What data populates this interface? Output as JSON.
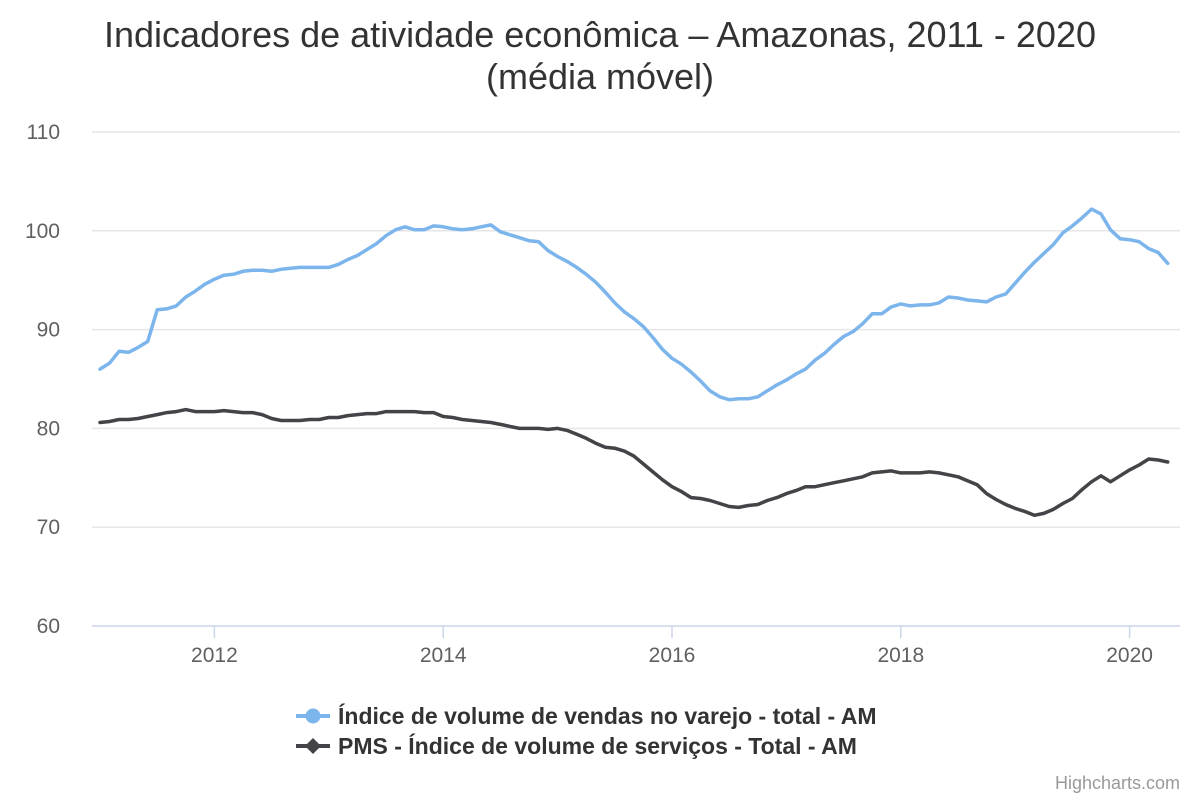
{
  "chart_data": {
    "type": "line",
    "title": "Indicadores de atividade econômica – Amazonas, 2011 - 2020",
    "subtitle": "(média móvel)",
    "xlabel": "",
    "ylabel": "",
    "ylim": [
      60,
      110
    ],
    "yticks": [
      "60",
      "70",
      "80",
      "90",
      "100",
      "110"
    ],
    "xticks": [
      "2012",
      "2014",
      "2016",
      "2018",
      "2020"
    ],
    "grid": true,
    "legend_position": "bottom",
    "x_start": "2011-01",
    "x_step": "1 month",
    "series": [
      {
        "name": "Índice de volume de vendas no varejo - total - AM",
        "color": "#7cb5ec",
        "marker": "circle",
        "values": [
          86.0,
          86.6,
          87.8,
          87.7,
          88.2,
          88.8,
          92.0,
          92.1,
          92.4,
          93.3,
          93.9,
          94.6,
          95.1,
          95.5,
          95.6,
          95.9,
          96.0,
          96.0,
          95.9,
          96.1,
          96.2,
          96.3,
          96.3,
          96.3,
          96.3,
          96.6,
          97.1,
          97.5,
          98.1,
          98.7,
          99.5,
          100.1,
          100.4,
          100.1,
          100.1,
          100.5,
          100.4,
          100.2,
          100.1,
          100.2,
          100.4,
          100.6,
          99.9,
          99.6,
          99.3,
          99.0,
          98.9,
          98.0,
          97.4,
          96.9,
          96.3,
          95.6,
          94.8,
          93.8,
          92.7,
          91.8,
          91.1,
          90.3,
          89.2,
          88.0,
          87.1,
          86.5,
          85.7,
          84.8,
          83.8,
          83.2,
          82.9,
          83.0,
          83.0,
          83.2,
          83.8,
          84.4,
          84.9,
          85.5,
          86.0,
          86.9,
          87.6,
          88.5,
          89.3,
          89.8,
          90.6,
          91.6,
          91.6,
          92.3,
          92.6,
          92.4,
          92.5,
          92.5,
          92.7,
          93.3,
          93.2,
          93.0,
          92.9,
          92.8,
          93.3,
          93.6,
          94.7,
          95.8,
          96.8,
          97.7,
          98.6,
          99.8,
          100.5,
          101.3,
          102.2,
          101.7,
          100.1,
          99.2,
          99.1,
          98.9,
          98.2,
          97.8,
          96.7
        ]
      },
      {
        "name": "PMS - Índice de volume de serviços - Total - AM",
        "color": "#434348",
        "marker": "diamond",
        "values": [
          80.6,
          80.7,
          80.9,
          80.9,
          81.0,
          81.2,
          81.4,
          81.6,
          81.7,
          81.9,
          81.7,
          81.7,
          81.7,
          81.8,
          81.7,
          81.6,
          81.6,
          81.4,
          81.0,
          80.8,
          80.8,
          80.8,
          80.9,
          80.9,
          81.1,
          81.1,
          81.3,
          81.4,
          81.5,
          81.5,
          81.7,
          81.7,
          81.7,
          81.7,
          81.6,
          81.6,
          81.2,
          81.1,
          80.9,
          80.8,
          80.7,
          80.6,
          80.4,
          80.2,
          80.0,
          80.0,
          80.0,
          79.9,
          80.0,
          79.8,
          79.4,
          79.0,
          78.5,
          78.1,
          78.0,
          77.7,
          77.2,
          76.4,
          75.6,
          74.8,
          74.1,
          73.6,
          73.0,
          72.9,
          72.7,
          72.4,
          72.1,
          72.0,
          72.2,
          72.3,
          72.7,
          73.0,
          73.4,
          73.7,
          74.1,
          74.1,
          74.3,
          74.5,
          74.7,
          74.9,
          75.1,
          75.5,
          75.6,
          75.7,
          75.5,
          75.5,
          75.5,
          75.6,
          75.5,
          75.3,
          75.1,
          74.7,
          74.3,
          73.4,
          72.8,
          72.3,
          71.9,
          71.6,
          71.2,
          71.4,
          71.8,
          72.4,
          72.9,
          73.8,
          74.6,
          75.2,
          74.6,
          75.2,
          75.8,
          76.3,
          76.9,
          76.8,
          76.6
        ]
      }
    ]
  },
  "credits": "Highcharts.com"
}
